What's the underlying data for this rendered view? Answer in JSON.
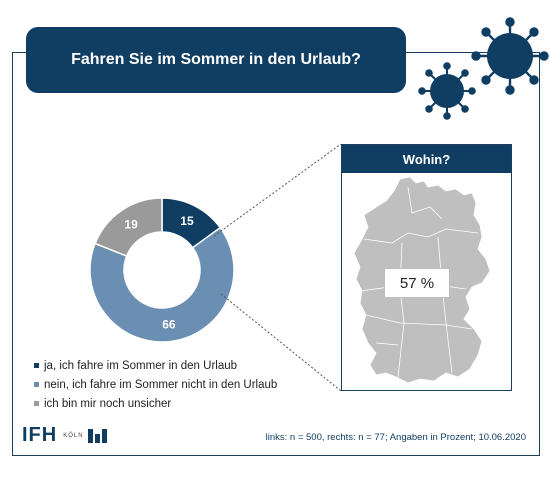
{
  "title": "Fahren Sie im Sommer in den Urlaub?",
  "chart_data": [
    {
      "type": "pie",
      "categories": [
        "ja, ich fahre im Sommer in den Urlaub",
        "nein, ich fahre im Sommer nicht in den Urlaub",
        "ich bin mir noch unsicher"
      ],
      "values": [
        15,
        66,
        19
      ],
      "colors": [
        "#103e63",
        "#6a8fb3",
        "#9a9a9a"
      ],
      "donut": true,
      "legend_position": "bottom-left"
    }
  ],
  "map_panel": {
    "title": "Wohin?",
    "value_label": "57 %",
    "value": 57,
    "region": "Germany"
  },
  "legend_items": [
    "ja, ich fahre im Sommer in den Urlaub",
    "nein, ich fahre im Sommer nicht in den Urlaub",
    "ich bin mir noch unsicher"
  ],
  "logo": {
    "main": "IFH",
    "sub": "KÖLN"
  },
  "footnote": "links: n = 500, rechts: n = 77; Angaben in Prozent; 10.06.2020",
  "colors": {
    "navy": "#103e63",
    "blue": "#6a8fb3",
    "gray": "#9a9a9a",
    "map_gray": "#bfbfbf"
  },
  "icons": [
    "virus-icon",
    "virus-icon"
  ]
}
